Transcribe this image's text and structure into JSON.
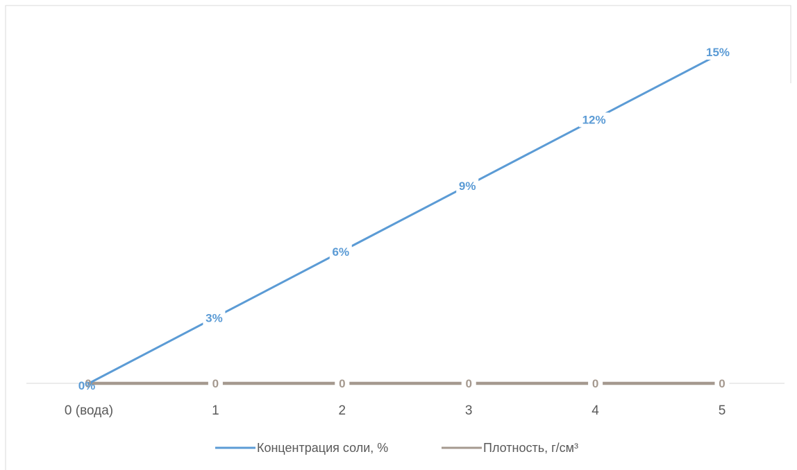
{
  "chart_data": {
    "type": "line",
    "title": "",
    "xlabel": "",
    "ylabel": "",
    "categories": [
      "0 (вода)",
      "1",
      "2",
      "3",
      "4",
      "5"
    ],
    "series": [
      {
        "name": "Концентрация соли, %",
        "values": [
          0,
          3,
          6,
          9,
          12,
          15
        ],
        "data_labels": [
          "0%",
          "3%",
          "6%",
          "9%",
          "12%",
          "15%"
        ],
        "color": "#5b9bd5"
      },
      {
        "name": "Плотность, г/см³",
        "values": [
          0,
          0,
          0,
          0,
          0,
          0
        ],
        "data_labels": [
          "0",
          "0",
          "0",
          "0",
          "0",
          "0"
        ],
        "color": "#a5998f"
      }
    ],
    "ylim": [
      0,
      15
    ],
    "grid": false,
    "legend": "bottom",
    "axis_line_color": "#d9d9d9",
    "tick_label_color": "#595959"
  }
}
